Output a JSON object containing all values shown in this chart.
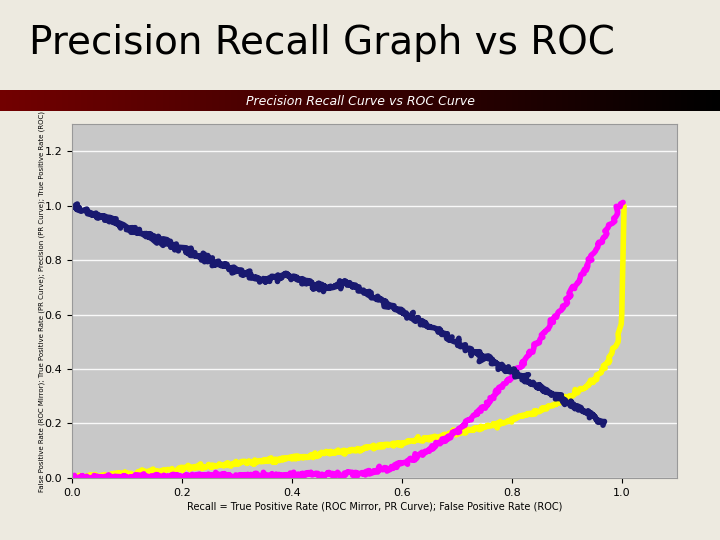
{
  "title": "Precision Recall Graph vs ROC",
  "subtitle": "Precision Recall Curve vs ROC Curve",
  "xlabel": "Recall = True Positive Rate (ROC Mirror, PR Curve); False Positive Rate (ROC)",
  "ylabel": "False Positive Rate (ROC Mirror); True Positive Rate (PR Curve); Precision (PR Curve); True Positive Rate (ROC)",
  "xlim": [
    0,
    1.1
  ],
  "ylim": [
    0,
    1.3
  ],
  "yticks": [
    0,
    0.2,
    0.4,
    0.6,
    0.8,
    1.0,
    1.2
  ],
  "xticks": [
    0,
    0.2,
    0.4,
    0.6,
    0.8,
    1.0
  ],
  "background_color": "#c8c8c8",
  "page_background": "#edeae0",
  "title_fontsize": 28,
  "subtitle_fontsize": 9,
  "axis_label_fontsize": 7,
  "tick_fontsize": 8,
  "pr_color": "#ffff00",
  "roc_color": "#ff00ff",
  "precision_color": "#191970",
  "line_width": 4
}
